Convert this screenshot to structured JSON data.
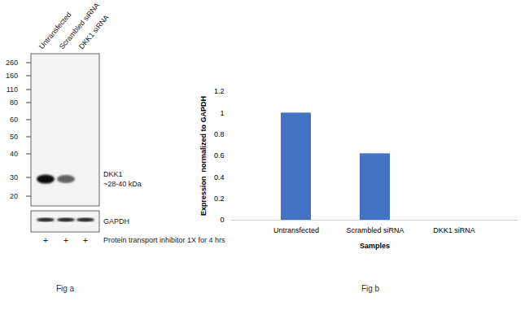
{
  "figure_a": {
    "lanes": [
      "Untransfected",
      "Scrambled siRNA",
      "DKK1 siRNA"
    ],
    "markers": [
      260,
      160,
      110,
      80,
      60,
      50,
      40,
      30,
      20
    ],
    "target_label": "DKK1",
    "target_size": "~28-40 kDa",
    "loading_control": "GAPDH",
    "treatment_marks": [
      "+",
      "+",
      "+"
    ],
    "treatment": "Protein transport inhibitor 1X for 4 hrs",
    "caption": "Fig a"
  },
  "chart_data": {
    "type": "bar",
    "categories": [
      "Untransfected",
      "Scrambled siRNA",
      "DKK1 siRNA"
    ],
    "values": [
      1.0,
      0.62,
      0
    ],
    "color": "#4472c4",
    "ylim": [
      0,
      1.2
    ],
    "yticks": [
      0,
      0.2,
      0.4,
      0.6,
      0.8,
      1,
      1.2
    ],
    "ylabel": "Expression  normalized to GAPDH",
    "xlabel": "Samples",
    "caption": "Fig b",
    "grid": false
  }
}
